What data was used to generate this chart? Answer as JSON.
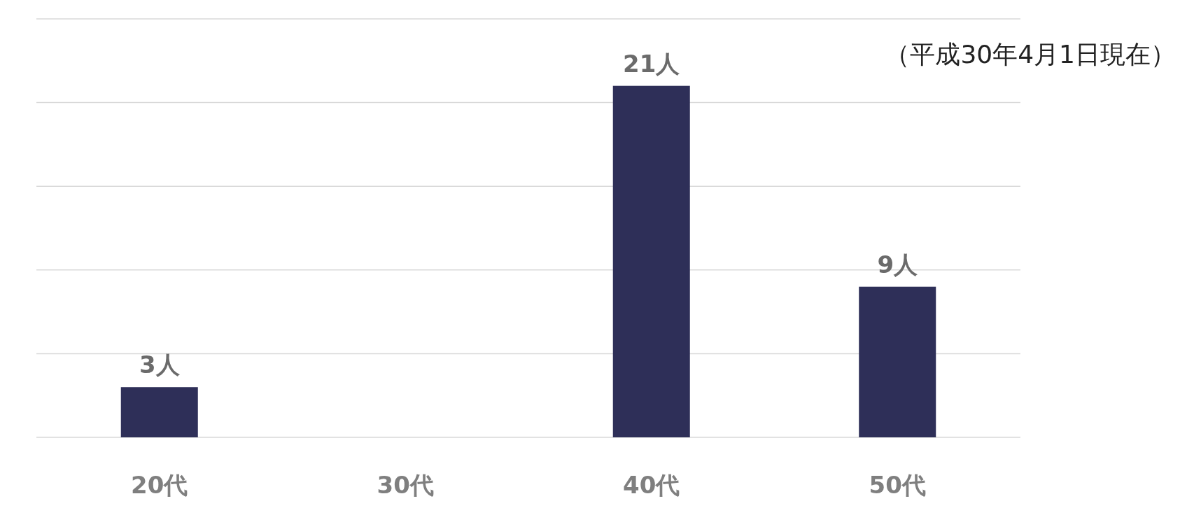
{
  "chart_data": {
    "type": "bar",
    "categories": [
      "20代",
      "30代",
      "40代",
      "50代"
    ],
    "values": [
      3,
      0,
      21,
      9
    ],
    "color": "#2e2f58",
    "value_labels": [
      "3人",
      null,
      "21人",
      "9人"
    ],
    "ylim": [
      0,
      25
    ],
    "yticks": [
      {
        "value": 0,
        "label": null
      },
      {
        "value": 5,
        "label": null
      },
      {
        "value": 10,
        "label": null
      },
      {
        "value": 15,
        "label": null
      },
      {
        "value": 20,
        "label": null
      },
      {
        "value": 25,
        "label": null
      }
    ],
    "tick_labels": "x",
    "grid": "y",
    "annotations": [
      "（平成30年4月1日現在）"
    ]
  }
}
